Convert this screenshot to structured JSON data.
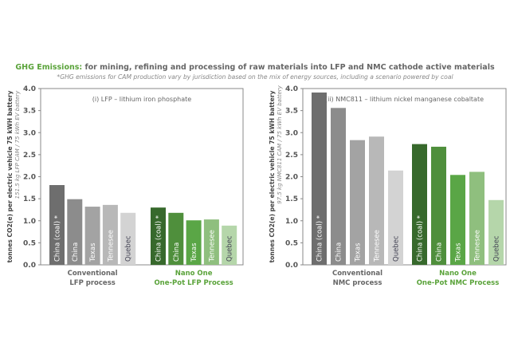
{
  "title_highlight": "GHG Emissions:",
  "title_rest": " for mining, refining and processing of raw materials into LFP and NMC cathode active materials",
  "subtitle": "*GHG emissions for CAM production vary by jurisdiction based on the mix of energy sources, including a scenario powered by coal",
  "colors": {
    "conventional": [
      "#6e6e6e",
      "#8c8c8c",
      "#a3a3a3",
      "#b8b8b8",
      "#d3d3d3"
    ],
    "nanoone": [
      "#37692c",
      "#4f8f3c",
      "#5aa646",
      "#8fbf7e",
      "#b5d6aa"
    ],
    "green_text": "#5aa33a",
    "axis": "#666666"
  },
  "chart_data": [
    {
      "type": "bar",
      "title": "(i) LFP – lithium iron phosphate",
      "ylabel": "tonnes CO2(e) per electric vehicle 75 kWH battery",
      "ylabel2": "151.5 kg LFP CAM / 75 kWh EV battery",
      "ylim": [
        0,
        4.0
      ],
      "yticks": [
        "0.0",
        "0.5",
        "1.0",
        "1.5",
        "2.0",
        "2.5",
        "3.0",
        "3.5",
        "4.0"
      ],
      "categories": [
        "China (coal) *",
        "China",
        "Texas",
        "Tennesee",
        "Quebec"
      ],
      "series": [
        {
          "name": "Conventional LFP process",
          "label_lines": [
            "Conventional",
            "LFP process"
          ],
          "values": [
            1.81,
            1.49,
            1.32,
            1.36,
            1.18
          ]
        },
        {
          "name": "Nano One One-Pot LFP Process",
          "label_lines": [
            "Nano One",
            "One-Pot LFP Process"
          ],
          "values": [
            1.3,
            1.18,
            1.01,
            1.03,
            0.89
          ]
        }
      ]
    },
    {
      "type": "bar",
      "title": "(ii) NMC811 – lithium nickel manganese cobaltate",
      "ylabel": "tonnes CO2(e) per electric vehicle 75 kWH battery",
      "ylabel2": "97.5 kg NMC811 CAM / 75 kWh EV battery",
      "ylim": [
        0,
        4.0
      ],
      "yticks": [
        "0.0",
        "0.5",
        "1.0",
        "1.5",
        "2.0",
        "2.5",
        "3.0",
        "3.5",
        "4.0"
      ],
      "categories": [
        "China (coal) *",
        "China",
        "Texas",
        "Tennesee",
        "Quebec"
      ],
      "series": [
        {
          "name": "Conventional NMC process",
          "label_lines": [
            "Conventional",
            "NMC process"
          ],
          "values": [
            3.91,
            3.56,
            2.83,
            2.91,
            2.14
          ]
        },
        {
          "name": "Nano One One-Pot NMC Process",
          "label_lines": [
            "Nano One",
            "One-Pot NMC Process"
          ],
          "values": [
            2.74,
            2.68,
            2.04,
            2.11,
            1.47
          ]
        }
      ]
    }
  ]
}
